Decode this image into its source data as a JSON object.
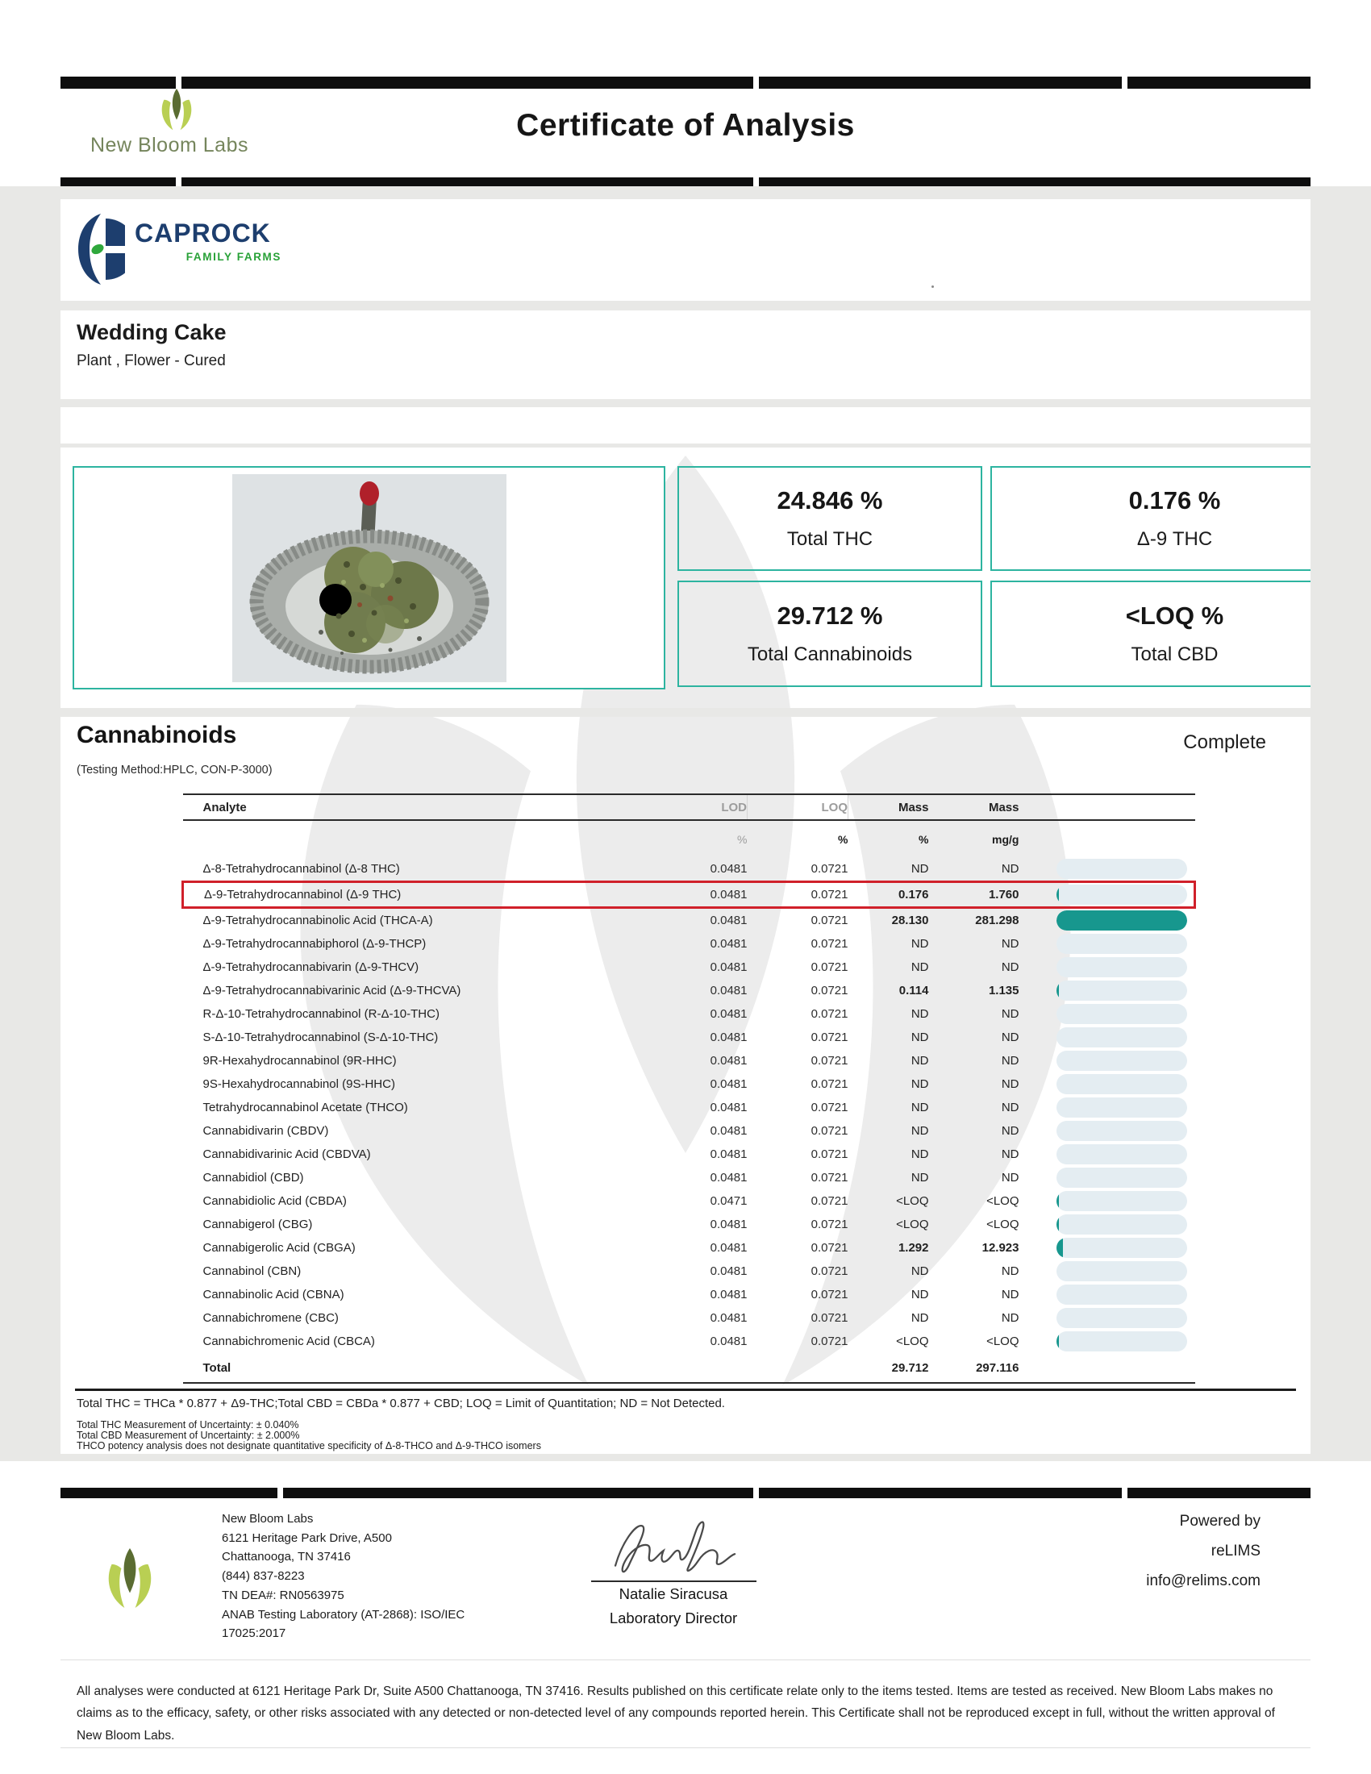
{
  "colors": {
    "accent": "#2db4a0",
    "bar_fill": "#17978e",
    "bar_track": "#e4edf2",
    "highlight": "#d0202a",
    "navy": "#1d3e6e",
    "green": "#28a137",
    "olive": "#5a6c31",
    "lime": "#b9cf53",
    "watermark": "#ececec",
    "logo_text": "#75855c",
    "black_bar": "#0e0e0e"
  },
  "header": {
    "lab_name": "New Bloom Labs",
    "title": "Certificate of Analysis"
  },
  "client": {
    "brand": "CAPROCK",
    "brand_sub": "FAMILY FARMS"
  },
  "sample": {
    "name": "Wedding Cake",
    "type": "Plant , Flower - Cured"
  },
  "summary": {
    "stats": [
      {
        "value": "24.846 %",
        "label": "Total THC"
      },
      {
        "value": "0.176 %",
        "label": "Δ-9 THC"
      },
      {
        "value": "29.712 %",
        "label": "Total Cannabinoids"
      },
      {
        "value": "<LOQ %",
        "label": "Total CBD"
      }
    ]
  },
  "cannabinoids": {
    "section_title": "Cannabinoids",
    "status": "Complete",
    "method": "(Testing Method:HPLC, CON-P-3000)",
    "table": {
      "headers": [
        "Analyte",
        "LOD",
        "LOQ",
        "Mass",
        "Mass"
      ],
      "units": [
        "%",
        "%",
        "%",
        "mg/g"
      ],
      "rows": [
        {
          "analyte": "Δ-8-Tetrahydrocannabinol (Δ-8 THC)",
          "lod": "0.0481",
          "loq": "0.0721",
          "mass_pct": "ND",
          "mass_mgg": "ND",
          "bold": false,
          "bar_pct": 0,
          "highlighted": false
        },
        {
          "analyte": "Δ-9-Tetrahydrocannabinol (Δ-9 THC)",
          "lod": "0.0481",
          "loq": "0.0721",
          "mass_pct": "0.176",
          "mass_mgg": "1.760",
          "bold": true,
          "bar_pct": 2,
          "highlighted": true
        },
        {
          "analyte": "Δ-9-Tetrahydrocannabinolic Acid (THCA-A)",
          "lod": "0.0481",
          "loq": "0.0721",
          "mass_pct": "28.130",
          "mass_mgg": "281.298",
          "bold": true,
          "bar_pct": 100,
          "highlighted": false
        },
        {
          "analyte": "Δ-9-Tetrahydrocannabiphorol (Δ-9-THCP)",
          "lod": "0.0481",
          "loq": "0.0721",
          "mass_pct": "ND",
          "mass_mgg": "ND",
          "bold": false,
          "bar_pct": 0,
          "highlighted": false
        },
        {
          "analyte": "Δ-9-Tetrahydrocannabivarin (Δ-9-THCV)",
          "lod": "0.0481",
          "loq": "0.0721",
          "mass_pct": "ND",
          "mass_mgg": "ND",
          "bold": false,
          "bar_pct": 0,
          "highlighted": false
        },
        {
          "analyte": "Δ-9-Tetrahydrocannabivarinic Acid (Δ-9-THCVA)",
          "lod": "0.0481",
          "loq": "0.0721",
          "mass_pct": "0.114",
          "mass_mgg": "1.135",
          "bold": true,
          "bar_pct": 2,
          "highlighted": false
        },
        {
          "analyte": "R-Δ-10-Tetrahydrocannabinol (R-Δ-10-THC)",
          "lod": "0.0481",
          "loq": "0.0721",
          "mass_pct": "ND",
          "mass_mgg": "ND",
          "bold": false,
          "bar_pct": 0,
          "highlighted": false
        },
        {
          "analyte": "S-Δ-10-Tetrahydrocannabinol (S-Δ-10-THC)",
          "lod": "0.0481",
          "loq": "0.0721",
          "mass_pct": "ND",
          "mass_mgg": "ND",
          "bold": false,
          "bar_pct": 0,
          "highlighted": false
        },
        {
          "analyte": "9R-Hexahydrocannabinol (9R-HHC)",
          "lod": "0.0481",
          "loq": "0.0721",
          "mass_pct": "ND",
          "mass_mgg": "ND",
          "bold": false,
          "bar_pct": 0,
          "highlighted": false
        },
        {
          "analyte": "9S-Hexahydrocannabinol (9S-HHC)",
          "lod": "0.0481",
          "loq": "0.0721",
          "mass_pct": "ND",
          "mass_mgg": "ND",
          "bold": false,
          "bar_pct": 0,
          "highlighted": false
        },
        {
          "analyte": "Tetrahydrocannabinol Acetate (THCO)",
          "lod": "0.0481",
          "loq": "0.0721",
          "mass_pct": "ND",
          "mass_mgg": "ND",
          "bold": false,
          "bar_pct": 0,
          "highlighted": false
        },
        {
          "analyte": "Cannabidivarin (CBDV)",
          "lod": "0.0481",
          "loq": "0.0721",
          "mass_pct": "ND",
          "mass_mgg": "ND",
          "bold": false,
          "bar_pct": 0,
          "highlighted": false
        },
        {
          "analyte": "Cannabidivarinic Acid (CBDVA)",
          "lod": "0.0481",
          "loq": "0.0721",
          "mass_pct": "ND",
          "mass_mgg": "ND",
          "bold": false,
          "bar_pct": 0,
          "highlighted": false
        },
        {
          "analyte": "Cannabidiol (CBD)",
          "lod": "0.0481",
          "loq": "0.0721",
          "mass_pct": "ND",
          "mass_mgg": "ND",
          "bold": false,
          "bar_pct": 0,
          "highlighted": false
        },
        {
          "analyte": "Cannabidiolic Acid (CBDA)",
          "lod": "0.0471",
          "loq": "0.0721",
          "mass_pct": "<LOQ",
          "mass_mgg": "<LOQ",
          "bold": false,
          "bar_pct": 2,
          "highlighted": false
        },
        {
          "analyte": "Cannabigerol (CBG)",
          "lod": "0.0481",
          "loq": "0.0721",
          "mass_pct": "<LOQ",
          "mass_mgg": "<LOQ",
          "bold": false,
          "bar_pct": 2,
          "highlighted": false
        },
        {
          "analyte": "Cannabigerolic Acid (CBGA)",
          "lod": "0.0481",
          "loq": "0.0721",
          "mass_pct": "1.292",
          "mass_mgg": "12.923",
          "bold": true,
          "bar_pct": 5,
          "highlighted": false
        },
        {
          "analyte": "Cannabinol (CBN)",
          "lod": "0.0481",
          "loq": "0.0721",
          "mass_pct": "ND",
          "mass_mgg": "ND",
          "bold": false,
          "bar_pct": 0,
          "highlighted": false
        },
        {
          "analyte": "Cannabinolic Acid (CBNA)",
          "lod": "0.0481",
          "loq": "0.0721",
          "mass_pct": "ND",
          "mass_mgg": "ND",
          "bold": false,
          "bar_pct": 0,
          "highlighted": false
        },
        {
          "analyte": "Cannabichromene (CBC)",
          "lod": "0.0481",
          "loq": "0.0721",
          "mass_pct": "ND",
          "mass_mgg": "ND",
          "bold": false,
          "bar_pct": 0,
          "highlighted": false
        },
        {
          "analyte": "Cannabichromenic Acid (CBCA)",
          "lod": "0.0481",
          "loq": "0.0721",
          "mass_pct": "<LOQ",
          "mass_mgg": "<LOQ",
          "bold": false,
          "bar_pct": 2,
          "highlighted": false
        }
      ],
      "total": {
        "label": "Total",
        "mass_pct": "29.712",
        "mass_mgg": "297.116"
      }
    },
    "footnotes": {
      "formula": "Total THC = THCa * 0.877 + Δ9-THC;Total CBD = CBDa * 0.877 + CBD; LOQ = Limit of Quantitation; ND = Not Detected.",
      "note1": "Total THC Measurement of Uncertainty: ± 0.040%",
      "note2": "Total CBD Measurement of Uncertainty: ± 2.000%",
      "note3": "THCO potency analysis does not designate quantitative specificity of Δ-8-THCO and Δ-9-THCO isomers"
    }
  },
  "footer": {
    "address_lines": [
      "New Bloom Labs",
      "6121 Heritage Park Drive, A500",
      "Chattanooga, TN 37416",
      "(844) 837-8223",
      "TN DEA#: RN0563975",
      "ANAB Testing Laboratory (AT-2868): ISO/IEC",
      "17025:2017"
    ],
    "signatory_name": "Natalie Siracusa",
    "signatory_title": "Laboratory Director",
    "powered_by": "Powered by",
    "lims_name": "reLIMS",
    "lims_email": "info@relims.com",
    "disclaimer": "All analyses were conducted at 6121 Heritage Park Dr, Suite A500 Chattanooga, TN 37416. Results published on this certificate relate only to the items tested. Items are tested as received. New Bloom Labs makes no claims as to the efficacy, safety, or other risks associated with any detected or non-detected level of any compounds reported herein. This Certificate shall not be reproduced except in full, without the written approval of New Bloom Labs."
  }
}
